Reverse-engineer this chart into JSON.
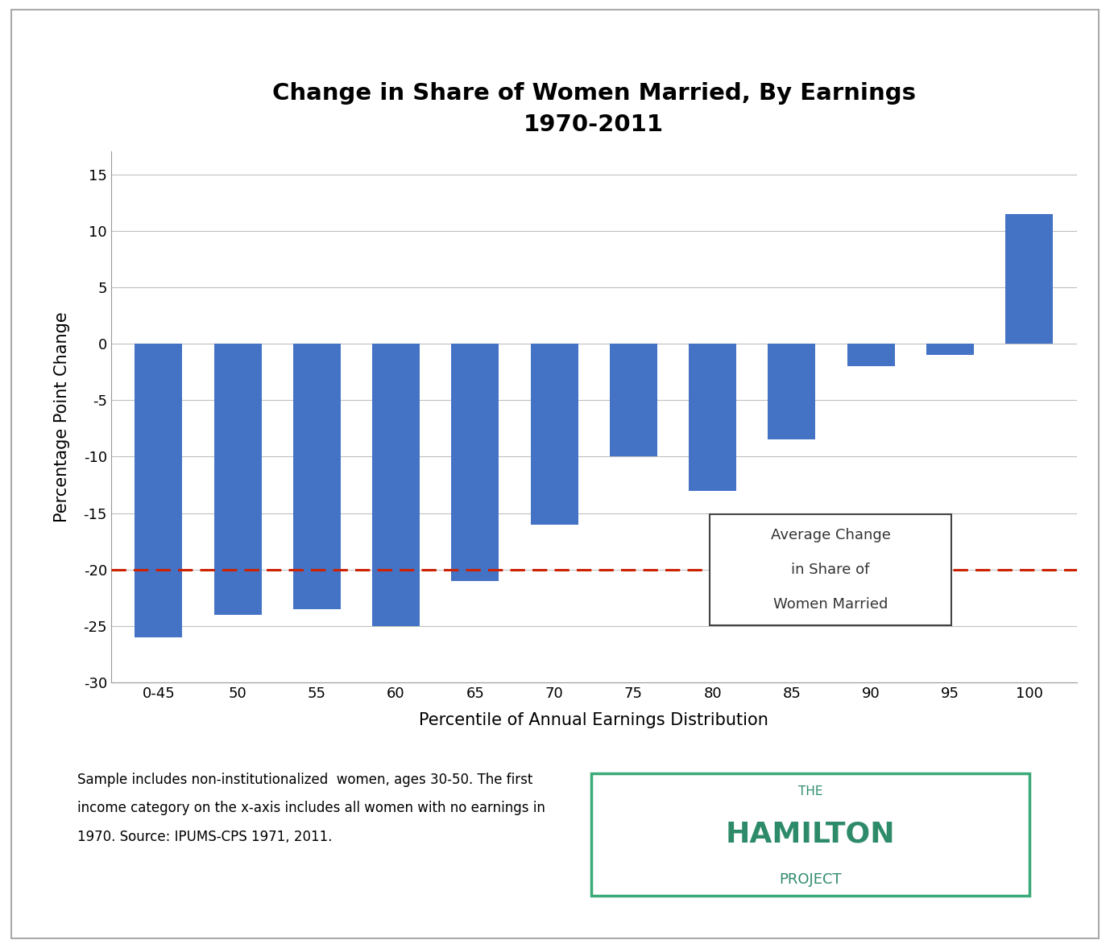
{
  "categories": [
    "0-45",
    "50",
    "55",
    "60",
    "65",
    "70",
    "75",
    "80",
    "85",
    "90",
    "95",
    "100"
  ],
  "values": [
    -26.0,
    -24.0,
    -23.5,
    -25.0,
    -21.0,
    -16.0,
    -10.0,
    -13.0,
    -8.5,
    -2.0,
    -1.0,
    11.5
  ],
  "bar_color": "#4472C4",
  "title_line1": "Change in Share of Women Married, By Earnings",
  "title_line2": "1970-2011",
  "xlabel": "Percentile of Annual Earnings Distribution",
  "ylabel": "Percentage Point Change",
  "ylim": [
    -30,
    17
  ],
  "yticks": [
    -30,
    -25,
    -20,
    -15,
    -10,
    -5,
    0,
    5,
    10,
    15
  ],
  "hline_y": -20,
  "hline_color": "#CC2200",
  "legend_text_line1": "Average Change",
  "legend_text_line2": "in Share of",
  "legend_text_line3": "Women Married",
  "footnote_line1": "Sample includes non-institutionalized  women, ages 30-50. The first",
  "footnote_line2": "income category on the x-axis includes all women with no earnings in",
  "footnote_line3": "1970. Source: IPUMS-CPS 1971, 2011.",
  "bg_color": "#FFFFFF",
  "grid_color": "#C0C0C0",
  "title_fontsize": 21,
  "label_fontsize": 15,
  "tick_fontsize": 13,
  "footnote_fontsize": 12,
  "hamilton_color": "#2E8B6A",
  "hamilton_border_color": "#3AAA78"
}
